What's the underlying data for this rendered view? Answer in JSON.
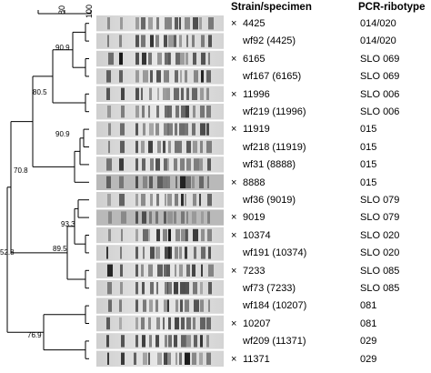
{
  "scale": {
    "ticks": [
      "80",
      "100"
    ]
  },
  "headers": {
    "strain": "Strain/specimen",
    "ribotype": "PCR-ribotype"
  },
  "node_values": [
    "90.9",
    "80.5",
    "90.9",
    "70.8",
    "93.3",
    "89.5",
    "52.8",
    "76.9"
  ],
  "rows": [
    {
      "marker": "×",
      "strain": "4425",
      "ribotype": "014/020",
      "reference": true
    },
    {
      "marker": "",
      "strain": "wf92 (4425)",
      "ribotype": "014/020",
      "reference": false
    },
    {
      "marker": "×",
      "strain": "6165",
      "ribotype": "SLO 069",
      "reference": true
    },
    {
      "marker": "",
      "strain": "wf167 (6165)",
      "ribotype": "SLO 069",
      "reference": false
    },
    {
      "marker": "×",
      "strain": "11996",
      "ribotype": "SLO 006",
      "reference": true
    },
    {
      "marker": "",
      "strain": "wf219 (11996)",
      "ribotype": "SLO 006",
      "reference": false
    },
    {
      "marker": "×",
      "strain": "11919",
      "ribotype": "015",
      "reference": true
    },
    {
      "marker": "",
      "strain": "wf218 (11919)",
      "ribotype": "015",
      "reference": false
    },
    {
      "marker": "",
      "strain": "wf31 (8888)",
      "ribotype": "015",
      "reference": false
    },
    {
      "marker": "×",
      "strain": "8888",
      "ribotype": "015",
      "reference": true
    },
    {
      "marker": "",
      "strain": "wf36 (9019)",
      "ribotype": "SLO 079",
      "reference": false
    },
    {
      "marker": "×",
      "strain": "9019",
      "ribotype": "SLO 079",
      "reference": true
    },
    {
      "marker": "×",
      "strain": "10374",
      "ribotype": "SLO 020",
      "reference": true
    },
    {
      "marker": "",
      "strain": "wf191 (10374)",
      "ribotype": "SLO 020",
      "reference": false
    },
    {
      "marker": "×",
      "strain": "7233",
      "ribotype": "SLO 085",
      "reference": true
    },
    {
      "marker": "",
      "strain": "wf73 (7233)",
      "ribotype": "SLO 085",
      "reference": false
    },
    {
      "marker": "",
      "strain": "wf184 (10207)",
      "ribotype": "081",
      "reference": false
    },
    {
      "marker": "×",
      "strain": "10207",
      "ribotype": "081",
      "reference": true
    },
    {
      "marker": "",
      "strain": "wf209 (11371)",
      "ribotype": "029",
      "reference": false
    },
    {
      "marker": "×",
      "strain": "11371",
      "ribotype": "029",
      "reference": true
    }
  ]
}
